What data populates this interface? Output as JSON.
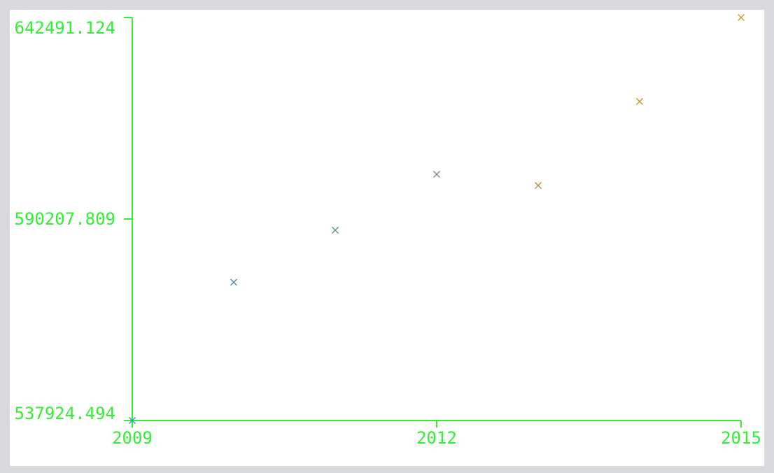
{
  "chart_data": {
    "type": "scatter",
    "title": "",
    "xlabel": "",
    "ylabel": "",
    "x_ticks": [
      "2009",
      "2012",
      "2015"
    ],
    "y_ticks": [
      "537924.494",
      "590207.809",
      "642491.124"
    ],
    "xlim": [
      2009,
      2015
    ],
    "ylim": [
      537924.494,
      642491.124
    ],
    "grid": false,
    "axis_color": "#33ee33",
    "points": [
      {
        "x": 2009,
        "y": 537924.494,
        "color": "#3b8fc9"
      },
      {
        "x": 2010,
        "y": 573800,
        "color": "#4a8fa8"
      },
      {
        "x": 2011,
        "y": 587300,
        "color": "#5a8c8c"
      },
      {
        "x": 2012,
        "y": 601800,
        "color": "#7a8f80"
      },
      {
        "x": 2013,
        "y": 598900,
        "color": "#b0894a"
      },
      {
        "x": 2014,
        "y": 620700,
        "color": "#c99536"
      },
      {
        "x": 2015,
        "y": 642491.124,
        "color": "#d49a2a"
      }
    ]
  }
}
